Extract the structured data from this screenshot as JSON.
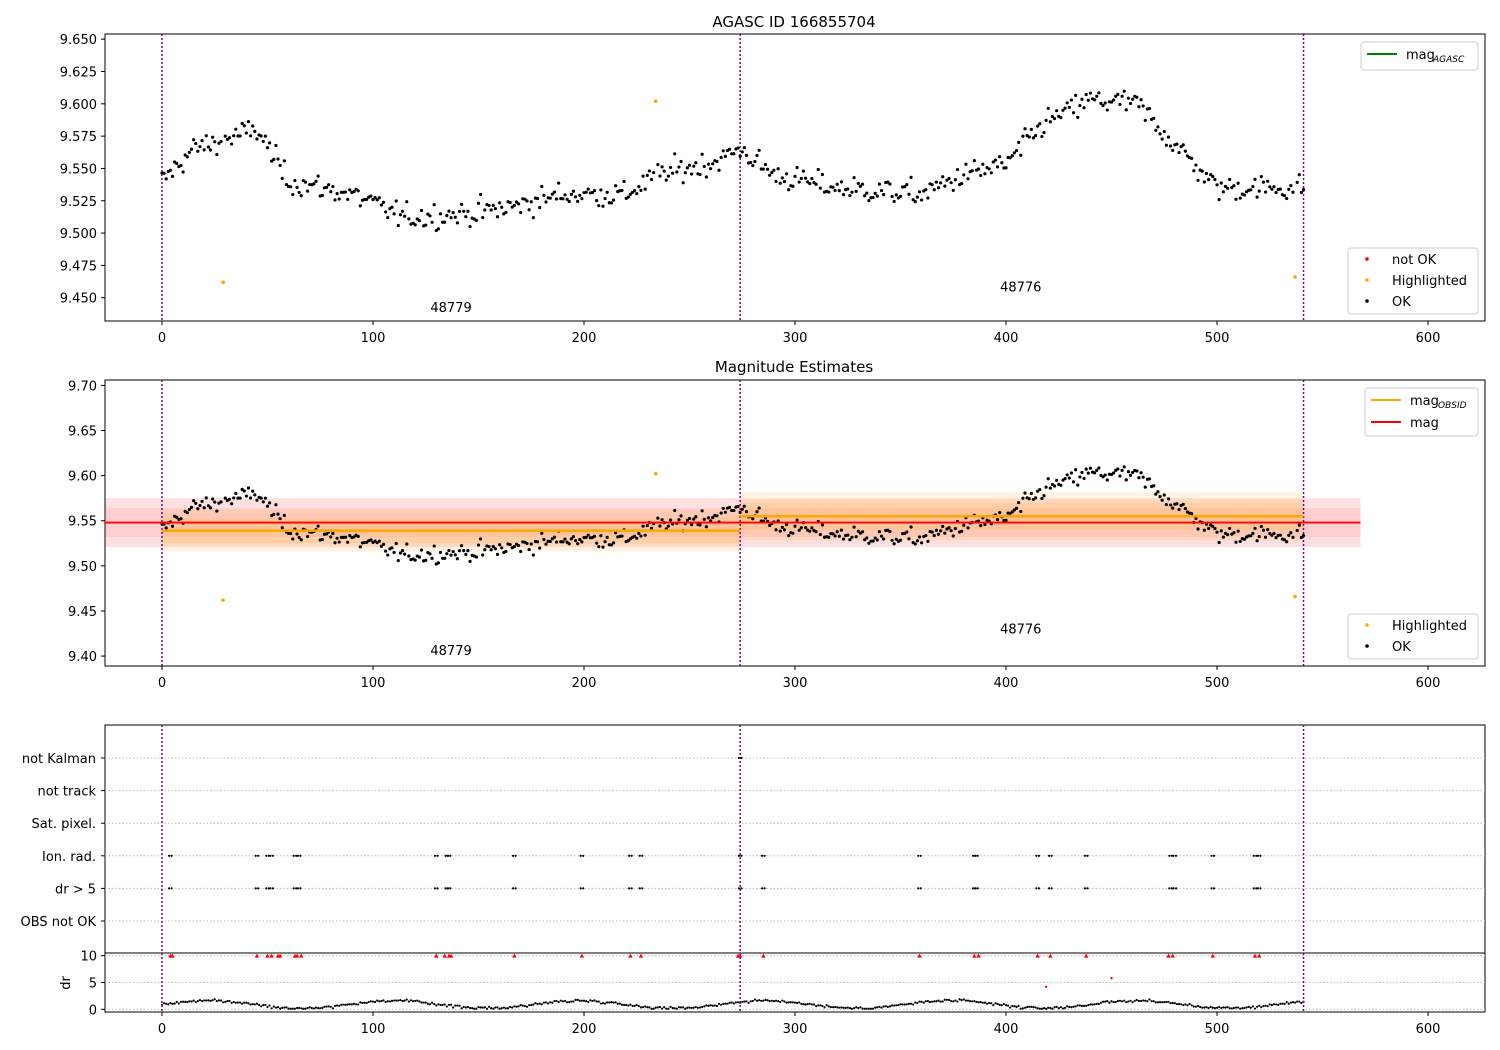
{
  "chart_data": [
    {
      "type": "scatter",
      "title": "AGASC ID 166855704",
      "xlim": [
        -27,
        627
      ],
      "ylim": [
        9.432,
        9.654
      ],
      "xticks": [
        0,
        100,
        200,
        300,
        400,
        500,
        600
      ],
      "yticks": [
        "9.450",
        "9.475",
        "9.500",
        "9.525",
        "9.550",
        "9.575",
        "9.600",
        "9.625",
        "9.650"
      ],
      "obsid_boundaries": [
        0,
        274,
        541
      ],
      "obsid_labels": [
        {
          "text": "48779",
          "x": 137,
          "y": 9.439
        },
        {
          "text": "48776",
          "x": 407,
          "y": 9.455
        }
      ],
      "legend_top": [
        {
          "label": "mag",
          "subscript": "AGASC",
          "color": "#008000"
        }
      ],
      "legend_bottom": [
        {
          "label": "not OK",
          "color": "#ff0000"
        },
        {
          "label": "Highlighted",
          "color": "#ffa500"
        },
        {
          "label": "OK",
          "color": "#000000"
        }
      ],
      "highlighted_points": [
        [
          29,
          9.462
        ],
        [
          234,
          9.602
        ],
        [
          537,
          9.466
        ]
      ],
      "trend": {
        "description": "dense magnitude time series, one point per sample",
        "anchors": [
          [
            0,
            9.54
          ],
          [
            15,
            9.565
          ],
          [
            45,
            9.58
          ],
          [
            60,
            9.54
          ],
          [
            90,
            9.53
          ],
          [
            115,
            9.512
          ],
          [
            145,
            9.515
          ],
          [
            165,
            9.52
          ],
          [
            190,
            9.53
          ],
          [
            220,
            9.53
          ],
          [
            235,
            9.545
          ],
          [
            262,
            9.555
          ],
          [
            274,
            9.565
          ],
          [
            290,
            9.545
          ],
          [
            320,
            9.535
          ],
          [
            360,
            9.53
          ],
          [
            380,
            9.545
          ],
          [
            400,
            9.553
          ],
          [
            418,
            9.585
          ],
          [
            440,
            9.603
          ],
          [
            462,
            9.6
          ],
          [
            485,
            9.56
          ],
          [
            500,
            9.535
          ],
          [
            541,
            9.535
          ]
        ],
        "noise": 0.012
      }
    },
    {
      "type": "scatter",
      "title": "Magnitude Estimates",
      "xlim": [
        -27,
        627
      ],
      "ylim": [
        9.389,
        9.706
      ],
      "xticks": [
        0,
        100,
        200,
        300,
        400,
        500,
        600
      ],
      "yticks": [
        "9.40",
        "9.45",
        "9.50",
        "9.55",
        "9.60",
        "9.65",
        "9.70"
      ],
      "obsid_boundaries": [
        0,
        274,
        541
      ],
      "obsid_labels": [
        {
          "text": "48779",
          "x": 137,
          "y": 9.401
        },
        {
          "text": "48776",
          "x": 407,
          "y": 9.425
        }
      ],
      "legend_top": [
        {
          "label": "mag",
          "subscript": "OBSID",
          "color": "#ffa500"
        },
        {
          "label": "mag",
          "subscript": "",
          "color": "#ff0000"
        }
      ],
      "legend_bottom": [
        {
          "label": "Highlighted",
          "color": "#ffa500"
        },
        {
          "label": "OK",
          "color": "#000000"
        }
      ],
      "mag_line": {
        "value": 9.548,
        "x0": -27,
        "x1": 568,
        "band1": [
          9.532,
          9.564
        ],
        "band2": [
          9.521,
          9.575
        ]
      },
      "obsid_mags": [
        {
          "x0": 0,
          "x1": 274,
          "value": 9.539,
          "band1": [
            9.525,
            9.553
          ],
          "band2": [
            9.516,
            9.562
          ]
        },
        {
          "x0": 274,
          "x1": 541,
          "value": 9.555,
          "band1": [
            9.54,
            9.57
          ],
          "band2": [
            9.528,
            9.582
          ]
        }
      ],
      "highlighted_points": [
        [
          29,
          9.462
        ],
        [
          234,
          9.602
        ],
        [
          537,
          9.466
        ]
      ]
    },
    {
      "type": "scatter",
      "title": "",
      "xlim": [
        -27,
        627
      ],
      "flag_rows": [
        "not Kalman",
        "not track",
        "Sat. pixel.",
        "Ion. rad.",
        "dr > 5",
        "OBS not OK"
      ],
      "flag_points": {
        "not Kalman": [
          274
        ],
        "Ion. rad.": [
          4,
          45,
          50,
          52,
          63,
          65,
          130,
          135,
          136,
          167,
          199,
          222,
          227,
          274,
          285,
          359,
          385,
          386,
          415,
          421,
          438,
          478,
          480,
          498,
          518,
          520
        ],
        "dr > 5": [
          4,
          45,
          50,
          52,
          63,
          65,
          130,
          135,
          136,
          167,
          199,
          222,
          227,
          274,
          285,
          359,
          385,
          386,
          415,
          421,
          438,
          478,
          480,
          498,
          518,
          520
        ]
      },
      "dr_ylim": [
        -0.5,
        10.5
      ],
      "dr_yticks": [
        0,
        5,
        10
      ],
      "dr_ylabel": "dr",
      "dr_capped_x": [
        4,
        5,
        45,
        50,
        52,
        55,
        56,
        63,
        64,
        66,
        130,
        134,
        136,
        137,
        167,
        199,
        222,
        227,
        273,
        274,
        285,
        359,
        385,
        387,
        415,
        421,
        438,
        477,
        479,
        498,
        518,
        520
      ],
      "dr_outliers": [
        [
          419,
          4.2
        ],
        [
          450,
          5.8
        ]
      ]
    }
  ]
}
